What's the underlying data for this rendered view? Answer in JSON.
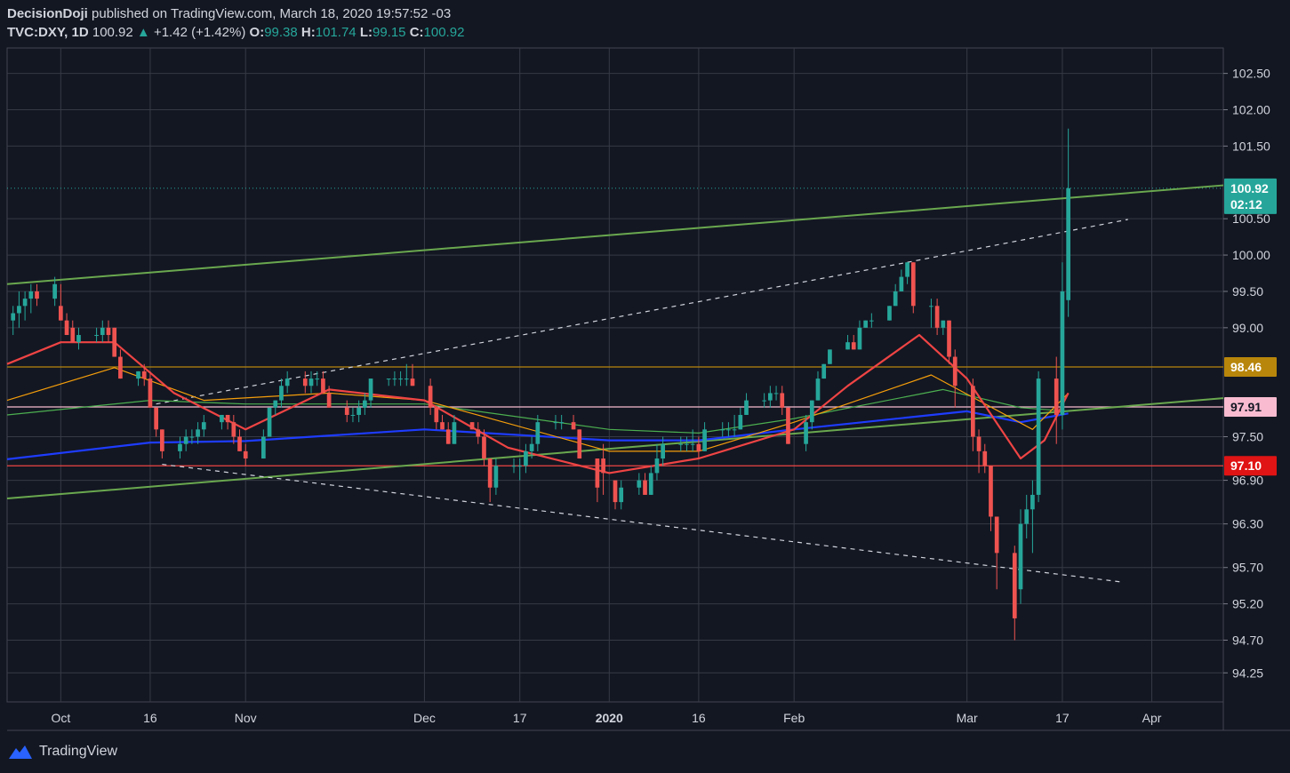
{
  "header": {
    "author": "DecisionDoji",
    "published": "published on TradingView.com, March 18, 2020 19:57:52 -03",
    "symbol": "TVC:DXY, 1D",
    "last": "100.92",
    "change": "+1.42 (+1.42%)",
    "open_label": "O:",
    "open": "99.38",
    "high_label": "H:",
    "high": "101.74",
    "low_label": "L:",
    "low": "99.15",
    "close_label": "C:",
    "close": "100.92"
  },
  "footer": {
    "brand": "TradingView"
  },
  "colors": {
    "bg": "#131722",
    "grid": "#363a45",
    "up": "#26a69a",
    "down": "#ef5350",
    "trend": "#6aa84f",
    "ma_red": "#ef4444",
    "ma_orange": "#f59e0b",
    "ma_green": "#4caf50",
    "ma_blue": "#1e3cff",
    "gold": "#b8860b",
    "pink": "#f8bbd0"
  },
  "chart_data": {
    "type": "candlestick",
    "ylim": [
      93.85,
      102.85
    ],
    "xlim": [
      "2019-09-22",
      "2020-04-13"
    ],
    "y_ticks": [
      "102.50",
      "102.00",
      "101.50",
      "100.50",
      "100.00",
      "99.50",
      "99.00",
      "97.50",
      "96.90",
      "96.30",
      "95.70",
      "95.20",
      "94.70",
      "94.25"
    ],
    "x_ticks": [
      {
        "date": "2019-10-01",
        "label": "Oct",
        "bold": false
      },
      {
        "date": "2019-10-16",
        "label": "16",
        "bold": false
      },
      {
        "date": "2019-11-01",
        "label": "Nov",
        "bold": false
      },
      {
        "date": "2019-12-01",
        "label": "Dec",
        "bold": false
      },
      {
        "date": "2019-12-17",
        "label": "17",
        "bold": false
      },
      {
        "date": "2020-01-01",
        "label": "2020",
        "bold": true
      },
      {
        "date": "2020-01-16",
        "label": "16",
        "bold": false
      },
      {
        "date": "2020-02-01",
        "label": "Feb",
        "bold": false
      },
      {
        "date": "2020-03-01",
        "label": "Mar",
        "bold": false
      },
      {
        "date": "2020-03-17",
        "label": "17",
        "bold": false
      },
      {
        "date": "2020-04-01",
        "label": "Apr",
        "bold": false
      }
    ],
    "candles": [
      [
        "2019-09-23",
        99.1,
        99.3,
        98.9,
        99.2
      ],
      [
        "2019-09-24",
        99.2,
        99.5,
        99.0,
        99.3
      ],
      [
        "2019-09-25",
        99.3,
        99.5,
        99.1,
        99.4
      ],
      [
        "2019-09-26",
        99.4,
        99.6,
        99.2,
        99.5
      ],
      [
        "2019-09-27",
        99.5,
        99.6,
        99.3,
        99.4
      ],
      [
        "2019-09-30",
        99.4,
        99.7,
        99.3,
        99.6
      ],
      [
        "2019-10-01",
        99.3,
        99.6,
        99.1,
        99.1
      ],
      [
        "2019-10-02",
        99.1,
        99.2,
        98.9,
        98.9
      ],
      [
        "2019-10-03",
        99.0,
        99.1,
        98.8,
        98.8
      ],
      [
        "2019-10-04",
        98.8,
        99.0,
        98.7,
        98.9
      ],
      [
        "2019-10-07",
        98.9,
        99.0,
        98.8,
        98.9
      ],
      [
        "2019-10-08",
        98.9,
        99.1,
        98.8,
        99.0
      ],
      [
        "2019-10-09",
        99.0,
        99.1,
        98.8,
        98.9
      ],
      [
        "2019-10-10",
        99.0,
        99.0,
        98.6,
        98.6
      ],
      [
        "2019-10-11",
        98.6,
        98.7,
        98.3,
        98.3
      ],
      [
        "2019-10-14",
        98.3,
        98.4,
        98.2,
        98.4
      ],
      [
        "2019-10-15",
        98.4,
        98.5,
        98.2,
        98.3
      ],
      [
        "2019-10-16",
        98.3,
        98.4,
        97.9,
        97.9
      ],
      [
        "2019-10-17",
        97.9,
        97.9,
        97.5,
        97.6
      ],
      [
        "2019-10-18",
        97.6,
        97.6,
        97.2,
        97.3
      ],
      [
        "2019-10-21",
        97.3,
        97.5,
        97.2,
        97.4
      ],
      [
        "2019-10-22",
        97.4,
        97.6,
        97.3,
        97.5
      ],
      [
        "2019-10-23",
        97.5,
        97.6,
        97.4,
        97.5
      ],
      [
        "2019-10-24",
        97.5,
        97.7,
        97.4,
        97.6
      ],
      [
        "2019-10-25",
        97.6,
        97.8,
        97.5,
        97.7
      ],
      [
        "2019-10-28",
        97.7,
        97.8,
        97.6,
        97.8
      ],
      [
        "2019-10-29",
        97.8,
        97.8,
        97.6,
        97.7
      ],
      [
        "2019-10-30",
        97.7,
        97.8,
        97.4,
        97.5
      ],
      [
        "2019-10-31",
        97.5,
        97.6,
        97.3,
        97.3
      ],
      [
        "2019-11-01",
        97.3,
        97.4,
        97.1,
        97.2
      ],
      [
        "2019-11-04",
        97.2,
        97.6,
        97.2,
        97.5
      ],
      [
        "2019-11-05",
        97.5,
        97.9,
        97.5,
        97.9
      ],
      [
        "2019-11-06",
        97.9,
        98.0,
        97.8,
        98.0
      ],
      [
        "2019-11-07",
        98.0,
        98.3,
        97.9,
        98.2
      ],
      [
        "2019-11-08",
        98.2,
        98.4,
        98.1,
        98.3
      ],
      [
        "2019-11-11",
        98.3,
        98.4,
        98.1,
        98.2
      ],
      [
        "2019-11-12",
        98.2,
        98.4,
        98.1,
        98.3
      ],
      [
        "2019-11-13",
        98.3,
        98.4,
        98.2,
        98.3
      ],
      [
        "2019-11-14",
        98.3,
        98.4,
        98.1,
        98.1
      ],
      [
        "2019-11-15",
        98.1,
        98.2,
        97.9,
        97.9
      ],
      [
        "2019-11-18",
        97.9,
        98.0,
        97.7,
        97.8
      ],
      [
        "2019-11-19",
        97.8,
        97.9,
        97.7,
        97.8
      ],
      [
        "2019-11-20",
        97.8,
        98.0,
        97.7,
        97.9
      ],
      [
        "2019-11-21",
        97.9,
        98.1,
        97.8,
        98.0
      ],
      [
        "2019-11-22",
        98.0,
        98.3,
        97.9,
        98.3
      ],
      [
        "2019-11-25",
        98.3,
        98.3,
        98.2,
        98.3
      ],
      [
        "2019-11-26",
        98.3,
        98.4,
        98.2,
        98.3
      ],
      [
        "2019-11-27",
        98.3,
        98.4,
        98.2,
        98.3
      ],
      [
        "2019-11-28",
        98.3,
        98.5,
        98.2,
        98.3
      ],
      [
        "2019-11-29",
        98.3,
        98.5,
        98.2,
        98.2
      ],
      [
        "2019-12-02",
        98.2,
        98.3,
        97.8,
        97.9
      ],
      [
        "2019-12-03",
        97.9,
        97.9,
        97.6,
        97.7
      ],
      [
        "2019-12-04",
        97.7,
        97.8,
        97.6,
        97.6
      ],
      [
        "2019-12-05",
        97.6,
        97.7,
        97.4,
        97.4
      ],
      [
        "2019-12-06",
        97.4,
        97.8,
        97.4,
        97.7
      ],
      [
        "2019-12-09",
        97.7,
        97.7,
        97.6,
        97.6
      ],
      [
        "2019-12-10",
        97.6,
        97.7,
        97.4,
        97.5
      ],
      [
        "2019-12-11",
        97.5,
        97.6,
        97.1,
        97.2
      ],
      [
        "2019-12-12",
        97.2,
        97.2,
        96.6,
        96.8
      ],
      [
        "2019-12-13",
        96.8,
        97.2,
        96.7,
        97.1
      ],
      [
        "2019-12-16",
        97.1,
        97.2,
        97.0,
        97.1
      ],
      [
        "2019-12-17",
        97.1,
        97.2,
        96.9,
        97.1
      ],
      [
        "2019-12-18",
        97.1,
        97.4,
        97.0,
        97.3
      ],
      [
        "2019-12-19",
        97.3,
        97.5,
        97.2,
        97.4
      ],
      [
        "2019-12-20",
        97.4,
        97.8,
        97.3,
        97.7
      ],
      [
        "2019-12-23",
        97.7,
        97.8,
        97.6,
        97.7
      ],
      [
        "2019-12-24",
        97.7,
        97.8,
        97.6,
        97.7
      ],
      [
        "2019-12-26",
        97.7,
        97.8,
        97.6,
        97.6
      ],
      [
        "2019-12-27",
        97.6,
        97.6,
        97.2,
        97.2
      ],
      [
        "2019-12-30",
        97.2,
        97.2,
        96.6,
        96.8
      ],
      [
        "2019-12-31",
        97.2,
        97.4,
        96.7,
        97.0
      ],
      [
        "2020-01-02",
        96.9,
        96.9,
        96.5,
        96.6
      ],
      [
        "2020-01-03",
        96.6,
        96.9,
        96.5,
        96.8
      ],
      [
        "2020-01-06",
        96.8,
        97.0,
        96.7,
        96.9
      ],
      [
        "2020-01-07",
        96.9,
        97.0,
        96.7,
        96.7
      ],
      [
        "2020-01-08",
        96.7,
        97.1,
        96.7,
        97.0
      ],
      [
        "2020-01-09",
        97.0,
        97.4,
        96.9,
        97.2
      ],
      [
        "2020-01-10",
        97.2,
        97.5,
        97.1,
        97.4
      ],
      [
        "2020-01-13",
        97.4,
        97.5,
        97.3,
        97.4
      ],
      [
        "2020-01-14",
        97.4,
        97.5,
        97.3,
        97.4
      ],
      [
        "2020-01-15",
        97.4,
        97.6,
        97.3,
        97.4
      ],
      [
        "2020-01-16",
        97.4,
        97.5,
        97.2,
        97.3
      ],
      [
        "2020-01-17",
        97.3,
        97.7,
        97.3,
        97.6
      ],
      [
        "2020-01-20",
        97.6,
        97.7,
        97.5,
        97.6
      ],
      [
        "2020-01-21",
        97.6,
        97.7,
        97.5,
        97.6
      ],
      [
        "2020-01-22",
        97.6,
        97.8,
        97.5,
        97.6
      ],
      [
        "2020-01-23",
        97.6,
        97.9,
        97.6,
        97.8
      ],
      [
        "2020-01-24",
        97.8,
        98.1,
        97.8,
        98.0
      ],
      [
        "2020-01-27",
        98.0,
        98.1,
        97.9,
        98.0
      ],
      [
        "2020-01-28",
        98.0,
        98.2,
        97.9,
        98.1
      ],
      [
        "2020-01-29",
        98.1,
        98.2,
        98.0,
        98.1
      ],
      [
        "2020-01-30",
        98.1,
        98.2,
        97.8,
        97.9
      ],
      [
        "2020-01-31",
        97.9,
        97.9,
        97.4,
        97.4
      ],
      [
        "2020-02-03",
        97.4,
        97.8,
        97.3,
        97.7
      ],
      [
        "2020-02-04",
        97.7,
        98.0,
        97.6,
        98.0
      ],
      [
        "2020-02-05",
        98.0,
        98.4,
        98.0,
        98.3
      ],
      [
        "2020-02-06",
        98.3,
        98.5,
        98.3,
        98.5
      ],
      [
        "2020-02-07",
        98.5,
        98.7,
        98.5,
        98.7
      ],
      [
        "2020-02-10",
        98.7,
        98.9,
        98.7,
        98.8
      ],
      [
        "2020-02-11",
        98.8,
        98.9,
        98.7,
        98.7
      ],
      [
        "2020-02-12",
        98.7,
        99.1,
        98.7,
        99.0
      ],
      [
        "2020-02-13",
        99.0,
        99.1,
        99.0,
        99.1
      ],
      [
        "2020-02-14",
        99.1,
        99.2,
        99.0,
        99.1
      ],
      [
        "2020-02-17",
        99.1,
        99.3,
        99.1,
        99.3
      ],
      [
        "2020-02-18",
        99.3,
        99.6,
        99.3,
        99.5
      ],
      [
        "2020-02-19",
        99.5,
        99.8,
        99.5,
        99.7
      ],
      [
        "2020-02-20",
        99.7,
        99.9,
        99.6,
        99.9
      ],
      [
        "2020-02-21",
        99.9,
        99.9,
        99.2,
        99.3
      ],
      [
        "2020-02-24",
        99.3,
        99.4,
        99.0,
        99.3
      ],
      [
        "2020-02-25",
        99.3,
        99.4,
        98.9,
        99.0
      ],
      [
        "2020-02-26",
        99.0,
        99.1,
        98.9,
        99.1
      ],
      [
        "2020-02-27",
        99.1,
        99.1,
        98.5,
        98.6
      ],
      [
        "2020-02-28",
        98.6,
        98.7,
        97.9,
        98.2
      ],
      [
        "2020-03-02",
        98.2,
        98.3,
        97.3,
        97.5
      ],
      [
        "2020-03-03",
        97.5,
        97.6,
        97.0,
        97.3
      ],
      [
        "2020-03-04",
        97.3,
        97.4,
        97.0,
        97.1
      ],
      [
        "2020-03-05",
        97.1,
        97.1,
        96.2,
        96.4
      ],
      [
        "2020-03-06",
        96.4,
        96.4,
        95.4,
        95.9
      ],
      [
        "2020-03-09",
        95.9,
        96.0,
        94.7,
        95.0
      ],
      [
        "2020-03-10",
        95.4,
        96.5,
        95.2,
        96.3
      ],
      [
        "2020-03-11",
        96.3,
        96.7,
        96.1,
        96.5
      ],
      [
        "2020-03-12",
        96.5,
        96.9,
        95.9,
        96.7
      ],
      [
        "2020-03-13",
        96.7,
        98.4,
        96.6,
        98.3
      ],
      [
        "2020-03-16",
        98.3,
        98.6,
        97.4,
        97.8
      ],
      [
        "2020-03-17",
        97.8,
        99.9,
        97.6,
        99.5
      ],
      [
        "2020-03-18",
        99.38,
        101.74,
        99.15,
        100.92
      ]
    ],
    "overlays": [
      {
        "kind": "trendline",
        "color": "#6aa84f",
        "from": [
          "2019-09-22",
          99.6
        ],
        "to": [
          "2020-04-13",
          100.96
        ]
      },
      {
        "kind": "trendline",
        "color": "#6aa84f",
        "from": [
          "2019-09-22",
          96.65
        ],
        "to": [
          "2020-04-13",
          98.03
        ]
      },
      {
        "kind": "dashed",
        "color": "#d1d4dc",
        "from": [
          "2019-10-17",
          97.95
        ],
        "to": [
          "2020-02-20",
          99.9
        ]
      },
      {
        "kind": "dashed",
        "color": "#d1d4dc",
        "from": [
          "2020-02-20",
          99.9
        ],
        "to": [
          "2020-03-28",
          100.49
        ]
      },
      {
        "kind": "dashed",
        "color": "#d1d4dc",
        "from": [
          "2019-10-18",
          97.12
        ],
        "to": [
          "2020-03-27",
          95.5
        ]
      },
      {
        "kind": "hline",
        "color": "#b8860b",
        "value": 98.46
      },
      {
        "kind": "hline",
        "color": "#f8bbd0",
        "value": 97.91
      },
      {
        "kind": "hline",
        "color": "#ef4444",
        "value": 97.1
      },
      {
        "kind": "hline_dotted",
        "color": "#26a69a",
        "value": 100.92
      }
    ],
    "moving_averages": [
      {
        "color": "#1e3cff",
        "points": [
          [
            "2019-09-22",
            97.19
          ],
          [
            "2019-10-16",
            97.42
          ],
          [
            "2019-11-01",
            97.44
          ],
          [
            "2019-12-01",
            97.6
          ],
          [
            "2020-01-01",
            97.45
          ],
          [
            "2020-01-16",
            97.45
          ],
          [
            "2020-02-01",
            97.6
          ],
          [
            "2020-03-01",
            97.85
          ],
          [
            "2020-03-10",
            97.7
          ],
          [
            "2020-03-18",
            97.82
          ]
        ]
      },
      {
        "color": "#4caf50",
        "points": [
          [
            "2019-09-22",
            97.8
          ],
          [
            "2019-10-16",
            98.0
          ],
          [
            "2019-11-01",
            97.95
          ],
          [
            "2019-12-01",
            97.95
          ],
          [
            "2020-01-01",
            97.6
          ],
          [
            "2020-01-16",
            97.55
          ],
          [
            "2020-02-01",
            97.75
          ],
          [
            "2020-02-26",
            98.15
          ],
          [
            "2020-03-10",
            97.9
          ],
          [
            "2020-03-18",
            97.85
          ]
        ]
      },
      {
        "color": "#f59e0b",
        "points": [
          [
            "2019-09-22",
            98.0
          ],
          [
            "2019-10-10",
            98.45
          ],
          [
            "2019-10-25",
            98.0
          ],
          [
            "2019-11-15",
            98.1
          ],
          [
            "2019-12-01",
            98.0
          ],
          [
            "2020-01-01",
            97.3
          ],
          [
            "2020-01-16",
            97.3
          ],
          [
            "2020-02-01",
            97.7
          ],
          [
            "2020-02-24",
            98.35
          ],
          [
            "2020-03-12",
            97.6
          ],
          [
            "2020-03-18",
            98.1
          ]
        ]
      },
      {
        "color": "#ef4444",
        "points": [
          [
            "2019-09-22",
            98.5
          ],
          [
            "2019-10-01",
            98.8
          ],
          [
            "2019-10-10",
            98.8
          ],
          [
            "2019-10-20",
            98.1
          ],
          [
            "2019-11-01",
            97.6
          ],
          [
            "2019-11-15",
            98.15
          ],
          [
            "2019-12-01",
            98.0
          ],
          [
            "2019-12-15",
            97.35
          ],
          [
            "2020-01-01",
            97.0
          ],
          [
            "2020-01-16",
            97.2
          ],
          [
            "2020-02-01",
            97.6
          ],
          [
            "2020-02-10",
            98.2
          ],
          [
            "2020-02-22",
            98.9
          ],
          [
            "2020-03-01",
            98.3
          ],
          [
            "2020-03-10",
            97.2
          ],
          [
            "2020-03-14",
            97.45
          ],
          [
            "2020-03-18",
            98.1
          ]
        ]
      }
    ],
    "price_tags": [
      {
        "value": 100.92,
        "label": "100.92",
        "bg": "#26a69a",
        "fg": "#ffffff"
      },
      {
        "value": 100.7,
        "label": "02:12",
        "bg": "#26a69a",
        "fg": "#ffffff"
      },
      {
        "value": 98.46,
        "label": "98.46",
        "bg": "#b8860b",
        "fg": "#ffffff"
      },
      {
        "value": 97.91,
        "label": "97.91",
        "bg": "#f8bbd0",
        "fg": "#131722"
      },
      {
        "value": 97.1,
        "label": "97.10",
        "bg": "#e01414",
        "fg": "#ffffff"
      }
    ]
  }
}
